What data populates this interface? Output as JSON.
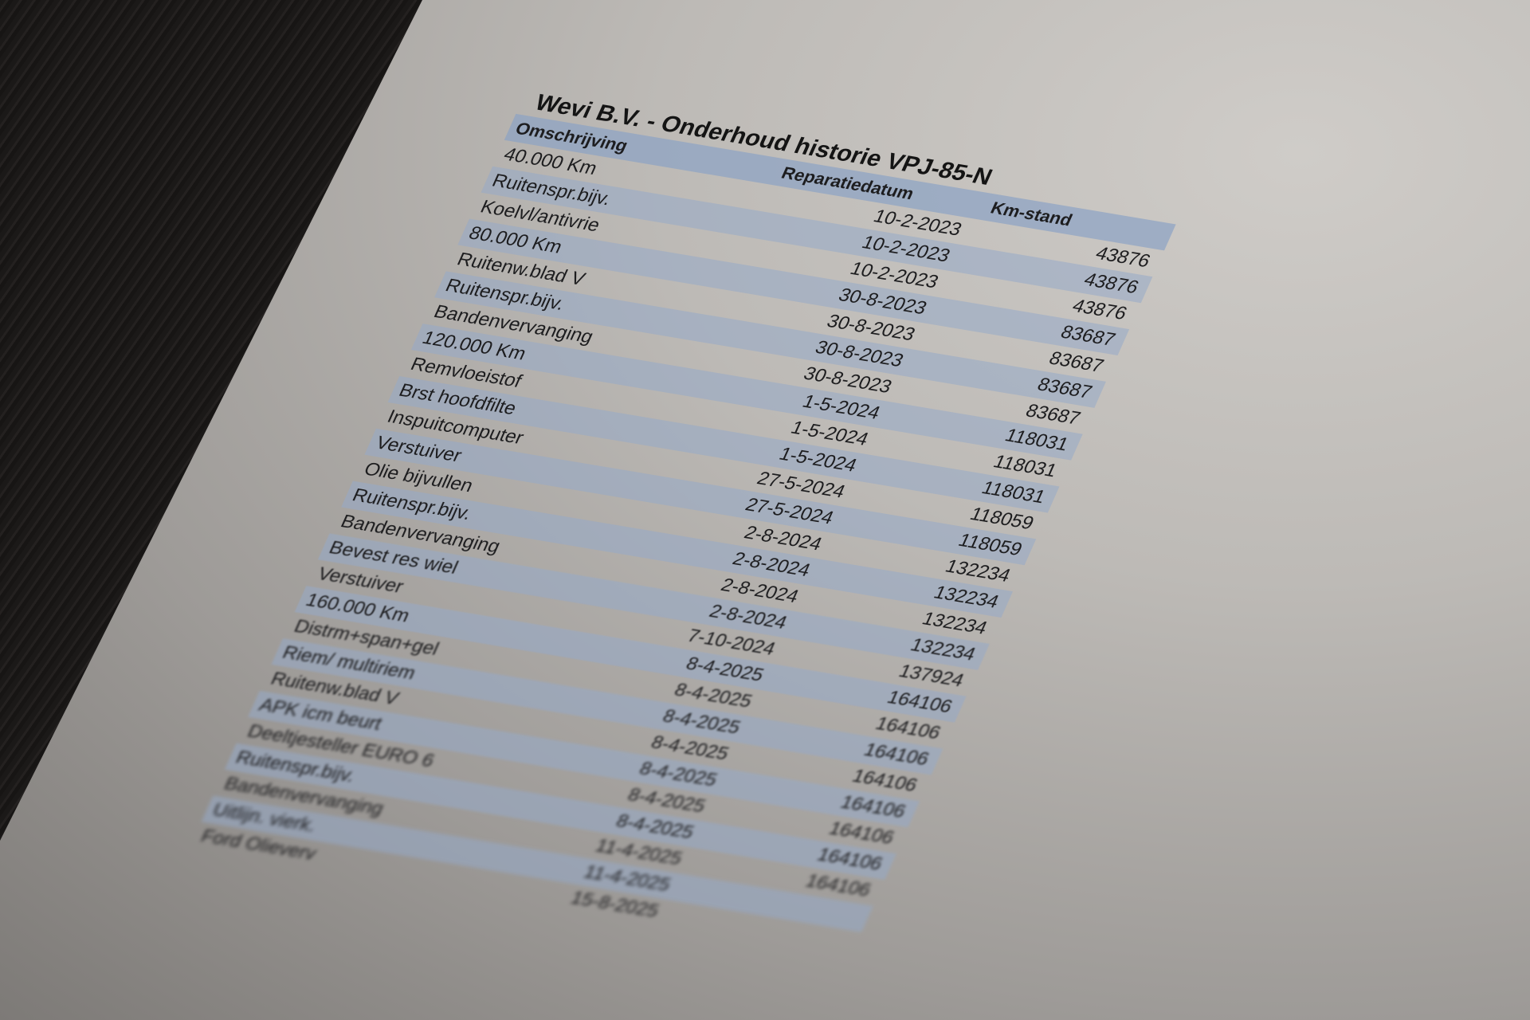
{
  "document": {
    "title": "Wevi B.V. - Onderhoud historie VPJ-85-N",
    "columns": [
      "Omschrijving",
      "Reparatiedatum",
      "Km-stand"
    ],
    "band_color": "#a9b8cc",
    "rows": [
      {
        "desc": "40.000 Km",
        "date": "10-2-2023",
        "km": "43876"
      },
      {
        "desc": "Ruitenspr.bijv.",
        "date": "10-2-2023",
        "km": "43876"
      },
      {
        "desc": "Koelvl/antivrie",
        "date": "10-2-2023",
        "km": "43876"
      },
      {
        "desc": "80.000 Km",
        "date": "30-8-2023",
        "km": "83687"
      },
      {
        "desc": "Ruitenw.blad V",
        "date": "30-8-2023",
        "km": "83687"
      },
      {
        "desc": "Ruitenspr.bijv.",
        "date": "30-8-2023",
        "km": "83687"
      },
      {
        "desc": "Bandenvervanging",
        "date": "30-8-2023",
        "km": "83687"
      },
      {
        "desc": "120.000 Km",
        "date": "1-5-2024",
        "km": "118031"
      },
      {
        "desc": "Remvloeistof",
        "date": "1-5-2024",
        "km": "118031"
      },
      {
        "desc": "Brst hoofdfilte",
        "date": "1-5-2024",
        "km": "118031"
      },
      {
        "desc": "Inspuitcomputer",
        "date": "27-5-2024",
        "km": "118059"
      },
      {
        "desc": "Verstuiver",
        "date": "27-5-2024",
        "km": "118059"
      },
      {
        "desc": "Olie bijvullen",
        "date": "2-8-2024",
        "km": "132234"
      },
      {
        "desc": "Ruitenspr.bijv.",
        "date": "2-8-2024",
        "km": "132234"
      },
      {
        "desc": "Bandenvervanging",
        "date": "2-8-2024",
        "km": "132234"
      },
      {
        "desc": "Bevest res wiel",
        "date": "2-8-2024",
        "km": "132234"
      },
      {
        "desc": "Verstuiver",
        "date": "7-10-2024",
        "km": "137924"
      },
      {
        "desc": "160.000 Km",
        "date": "8-4-2025",
        "km": "164106"
      },
      {
        "desc": "Distrm+span+gel",
        "date": "8-4-2025",
        "km": "164106"
      },
      {
        "desc": "Riem/ multiriem",
        "date": "8-4-2025",
        "km": "164106"
      },
      {
        "desc": "Ruitenw.blad V",
        "date": "8-4-2025",
        "km": "164106"
      },
      {
        "desc": "APK icm beurt",
        "date": "8-4-2025",
        "km": "164106"
      },
      {
        "desc": "Deeltjesteller EURO 6",
        "date": "8-4-2025",
        "km": "164106"
      },
      {
        "desc": "Ruitenspr.bijv.",
        "date": "8-4-2025",
        "km": "164106"
      },
      {
        "desc": "Bandenvervanging",
        "date": "11-4-2025",
        "km": "164106"
      },
      {
        "desc": "Uitlijn. vierk.",
        "date": "11-4-2025",
        "km": ""
      },
      {
        "desc": "Ford Olieverv",
        "date": "15-8-2025",
        "km": ""
      }
    ]
  }
}
